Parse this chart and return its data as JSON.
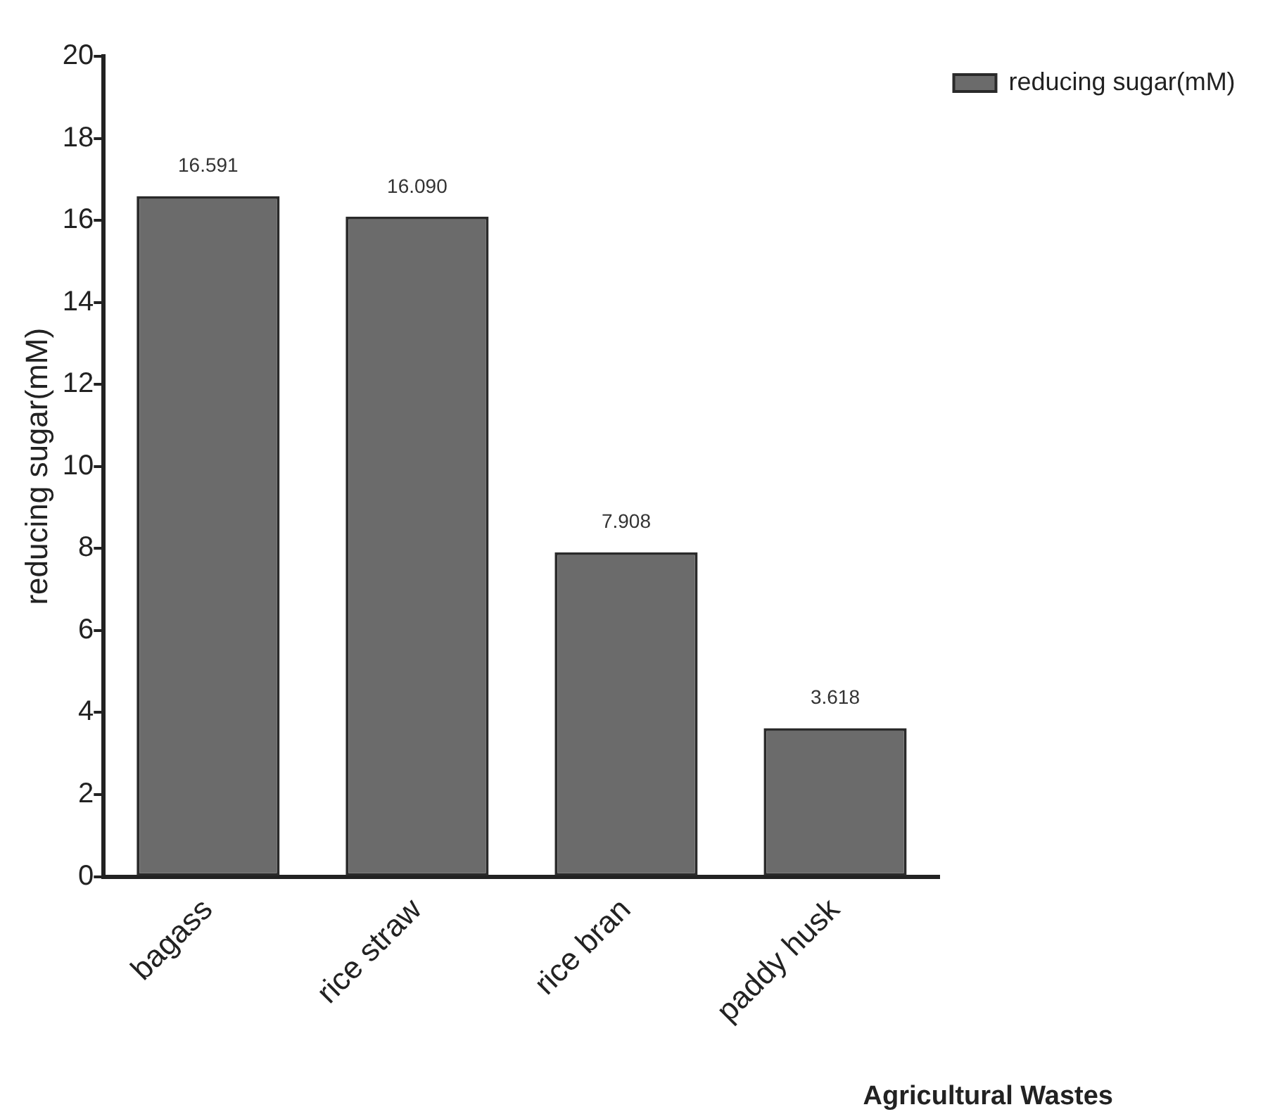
{
  "chart_data": {
    "type": "bar",
    "xlabel": "Agricultural Wastes",
    "ylabel": "reducing sugar(mM)",
    "categories": [
      "bagass",
      "rice straw",
      "rice bran",
      "paddy husk"
    ],
    "series": [
      {
        "name": "reducing sugar(mM)",
        "color": "#6b6b6b",
        "values": [
          16.591,
          16.09,
          7.908,
          3.618
        ]
      }
    ],
    "value_labels": [
      "16.591",
      "16.090",
      "7.908",
      "3.618"
    ],
    "ylim": [
      0,
      20
    ],
    "yticks": [
      0,
      2,
      4,
      6,
      8,
      10,
      12,
      14,
      16,
      18,
      20
    ],
    "grid": false,
    "legend": "top right"
  }
}
